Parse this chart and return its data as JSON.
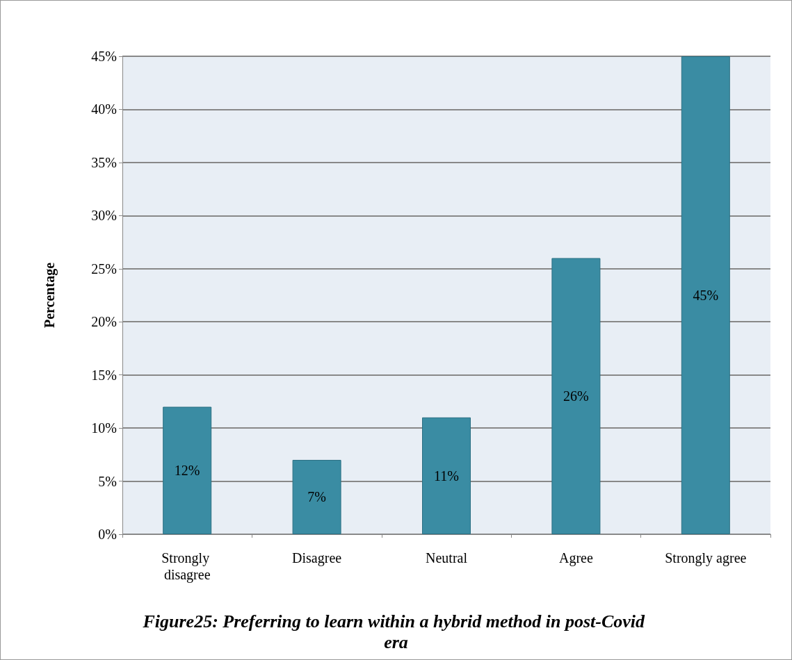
{
  "chart_data": {
    "type": "bar",
    "title": "Figure25: Preferring to learn within a hybrid method in post-Covid era",
    "ylabel": "Percentage",
    "categories": [
      "Strongly disagree",
      "Disagree",
      "Neutral",
      "Agree",
      "Strongly agree"
    ],
    "values": [
      12,
      7,
      11,
      26,
      45
    ],
    "value_labels": [
      "12%",
      "7%",
      "11%",
      "26%",
      "45%"
    ],
    "color": "#3a8ca3",
    "ylim": [
      0,
      45
    ],
    "yticks": [
      {
        "value": 0,
        "label": "0%"
      },
      {
        "value": 5,
        "label": "5%"
      },
      {
        "value": 10,
        "label": "10%"
      },
      {
        "value": 15,
        "label": "15%"
      },
      {
        "value": 20,
        "label": "20%"
      },
      {
        "value": 25,
        "label": "25%"
      },
      {
        "value": 30,
        "label": "30%"
      },
      {
        "value": 35,
        "label": "35%"
      },
      {
        "value": 40,
        "label": "40%"
      },
      {
        "value": 45,
        "label": "45%"
      }
    ],
    "grid": "y"
  }
}
